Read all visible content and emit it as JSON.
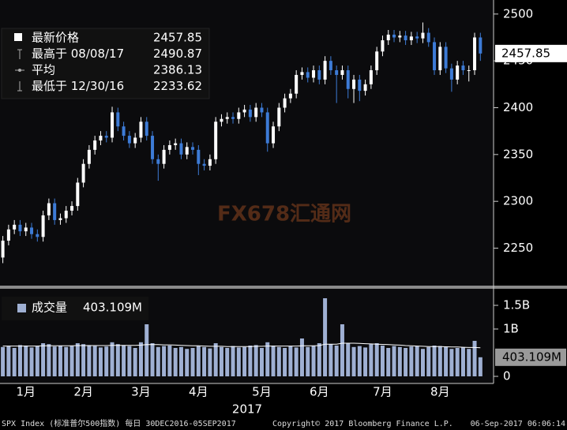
{
  "chart_data": [
    {
      "type": "candlestick",
      "categories": [
        null,
        null,
        null,
        null,
        "1月",
        null,
        null,
        null,
        null,
        null,
        null,
        null,
        null,
        null,
        "2月",
        null,
        null,
        null,
        null,
        null,
        null,
        null,
        null,
        null,
        "3月",
        null,
        null,
        null,
        null,
        null,
        null,
        null,
        null,
        null,
        "4月",
        null,
        null,
        null,
        null,
        null,
        null,
        null,
        null,
        null,
        null,
        "5月",
        null,
        null,
        null,
        null,
        null,
        null,
        null,
        null,
        null,
        "6月",
        null,
        null,
        null,
        null,
        null,
        null,
        null,
        null,
        null,
        null,
        "7月",
        null,
        null,
        null,
        null,
        null,
        null,
        null,
        null,
        null,
        "8月",
        null,
        null,
        null,
        null,
        null,
        null,
        null
      ],
      "year": "2017",
      "open": [
        2240,
        2258,
        2270,
        2275,
        2268,
        2272,
        2265,
        2262,
        2285,
        2298,
        2280,
        2282,
        2290,
        2295,
        2320,
        2340,
        2355,
        2365,
        2370,
        2368,
        2395,
        2380,
        2370,
        2362,
        2368,
        2385,
        2370,
        2345,
        2340,
        2355,
        2360,
        2362,
        2350,
        2358,
        2355,
        2340,
        2338,
        2345,
        2385,
        2388,
        2390,
        2388,
        2395,
        2398,
        2390,
        2400,
        2395,
        2362,
        2380,
        2400,
        2410,
        2415,
        2435,
        2438,
        2432,
        2440,
        2430,
        2450,
        2440,
        2435,
        2440,
        2420,
        2430,
        2418,
        2425,
        2440,
        2460,
        2472,
        2478,
        2475,
        2477,
        2472,
        2476,
        2474,
        2480,
        2470,
        2440,
        2465,
        2442,
        2430,
        2445,
        2440,
        2440,
        2475
      ],
      "high": [
        2263,
        2275,
        2280,
        2280,
        2277,
        2277,
        2270,
        2290,
        2303,
        2303,
        2287,
        2295,
        2300,
        2325,
        2345,
        2360,
        2370,
        2375,
        2375,
        2401,
        2400,
        2385,
        2375,
        2373,
        2390,
        2390,
        2375,
        2350,
        2360,
        2365,
        2367,
        2367,
        2363,
        2363,
        2360,
        2345,
        2350,
        2390,
        2393,
        2395,
        2395,
        2400,
        2403,
        2403,
        2405,
        2405,
        2400,
        2385,
        2405,
        2415,
        2420,
        2440,
        2443,
        2443,
        2445,
        2445,
        2455,
        2455,
        2445,
        2445,
        2445,
        2435,
        2435,
        2430,
        2445,
        2465,
        2477,
        2483,
        2483,
        2482,
        2482,
        2481,
        2481,
        2491,
        2485,
        2475,
        2470,
        2470,
        2447,
        2450,
        2450,
        2445,
        2480,
        2480
      ],
      "low": [
        2234,
        2253,
        2265,
        2263,
        2263,
        2260,
        2257,
        2257,
        2280,
        2275,
        2275,
        2277,
        2285,
        2290,
        2315,
        2335,
        2350,
        2360,
        2363,
        2363,
        2375,
        2365,
        2357,
        2357,
        2363,
        2365,
        2340,
        2322,
        2335,
        2350,
        2355,
        2345,
        2345,
        2350,
        2328,
        2333,
        2333,
        2340,
        2380,
        2383,
        2383,
        2383,
        2390,
        2385,
        2385,
        2390,
        2353,
        2357,
        2375,
        2395,
        2405,
        2410,
        2430,
        2427,
        2427,
        2425,
        2425,
        2435,
        2405,
        2430,
        2410,
        2405,
        2407,
        2413,
        2420,
        2435,
        2455,
        2467,
        2470,
        2470,
        2467,
        2467,
        2469,
        2469,
        2465,
        2435,
        2435,
        2437,
        2417,
        2425,
        2435,
        2428,
        2435,
        2450
      ],
      "close": [
        2258,
        2270,
        2275,
        2268,
        2272,
        2265,
        2262,
        2285,
        2298,
        2280,
        2282,
        2290,
        2295,
        2320,
        2340,
        2355,
        2365,
        2370,
        2368,
        2395,
        2380,
        2370,
        2362,
        2368,
        2385,
        2370,
        2345,
        2340,
        2355,
        2360,
        2362,
        2350,
        2358,
        2355,
        2340,
        2338,
        2345,
        2385,
        2388,
        2390,
        2388,
        2395,
        2398,
        2390,
        2400,
        2395,
        2362,
        2380,
        2400,
        2410,
        2415,
        2435,
        2438,
        2432,
        2440,
        2430,
        2450,
        2440,
        2435,
        2440,
        2420,
        2430,
        2418,
        2425,
        2440,
        2460,
        2472,
        2478,
        2475,
        2477,
        2472,
        2476,
        2474,
        2480,
        2470,
        2440,
        2465,
        2442,
        2430,
        2445,
        2440,
        2440,
        2475,
        2457.85
      ],
      "up_color": "#ffffff",
      "down_color": "#3d7bd6",
      "ylim": [
        2210,
        2515
      ],
      "yticks": [
        2250,
        2300,
        2350,
        2400,
        2450,
        2500
      ],
      "grid": false,
      "legend": [
        {
          "label": "最新价格",
          "value": 2457.85
        },
        {
          "label": "最高于 08/08/17",
          "value": 2490.87
        },
        {
          "label": "平均",
          "value": 2386.13
        },
        {
          "label": "最低于 12/30/16",
          "value": 2233.62
        }
      ]
    },
    {
      "type": "volume",
      "name": "成交量",
      "values": [
        620,
        640,
        600,
        660,
        650,
        610,
        640,
        700,
        680,
        630,
        650,
        620,
        640,
        700,
        680,
        660,
        640,
        610,
        630,
        720,
        680,
        650,
        640,
        600,
        720,
        1100,
        700,
        620,
        640,
        650,
        600,
        620,
        580,
        600,
        640,
        620,
        590,
        700,
        620,
        600,
        640,
        610,
        620,
        650,
        660,
        600,
        720,
        650,
        620,
        600,
        640,
        610,
        800,
        620,
        650,
        700,
        1650,
        680,
        650,
        1100,
        700,
        620,
        640,
        610,
        680,
        700,
        650,
        600,
        640,
        620,
        600,
        630,
        640,
        580,
        620,
        650,
        640,
        620,
        580,
        600,
        610,
        580,
        750,
        403.109
      ],
      "average": [
        640,
        640,
        640,
        640,
        640,
        640,
        640,
        645,
        645,
        645,
        645,
        645,
        645,
        650,
        650,
        650,
        650,
        650,
        650,
        655,
        655,
        655,
        655,
        655,
        660,
        670,
        670,
        670,
        665,
        665,
        660,
        655,
        650,
        645,
        645,
        640,
        635,
        635,
        635,
        630,
        630,
        630,
        630,
        630,
        635,
        635,
        640,
        640,
        640,
        640,
        640,
        640,
        645,
        645,
        645,
        650,
        680,
        680,
        680,
        700,
        700,
        700,
        695,
        690,
        685,
        680,
        675,
        670,
        665,
        660,
        650,
        645,
        640,
        635,
        630,
        630,
        630,
        625,
        620,
        620,
        615,
        610,
        610,
        605
      ],
      "last_label": "403.109M",
      "color": "#9fb0d3",
      "average_color": "#ffffff",
      "ylim": [
        -150,
        1850
      ],
      "yticks": [
        {
          "value": 1500,
          "label": "1.5B"
        },
        {
          "value": 1000,
          "label": "1B"
        },
        0
      ]
    }
  ],
  "footer": {
    "left": "SPX Index (标准普尔500指数)  每日 30DEC2016-05SEP2017",
    "center": "Copyright© 2017 Bloomberg Finance L.P.",
    "right": "06-Sep-2017 06:06:14"
  },
  "watermark": "FX678汇通网"
}
